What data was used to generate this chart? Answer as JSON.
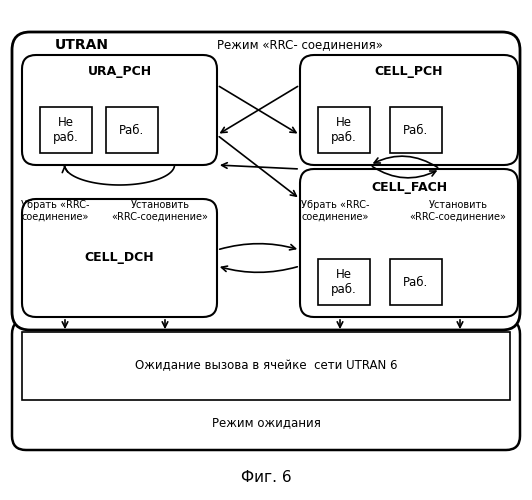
{
  "title": "Фиг. 6",
  "utran_label": "UTRAN",
  "mode_label": "Режим «RRC- соединения»",
  "ura_pch_label": "URA_PCH",
  "cell_pch_label": "CELL_PCH",
  "cell_dch_label": "CELL_DCH",
  "cell_fach_label": "CELL_FACH",
  "ne_rab": "Не\nраб.",
  "rab": "Раб.",
  "wait_label": "Ожидание вызова в ячейке  сети UTRAN 6",
  "idle_label": "Режим ожидания",
  "arrow_labels": [
    "Убрать «RRC-\nсоединение»",
    "Установить\n«RRC-соединение»",
    "Убрать «RRC-\nсоединение»",
    "Установить\n«RRC-соединение»"
  ],
  "bg_color": "#ffffff",
  "text_color": "#000000"
}
